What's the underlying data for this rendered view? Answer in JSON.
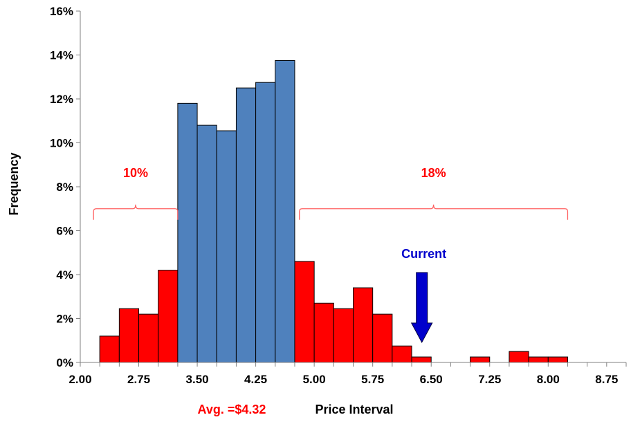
{
  "chart_data": {
    "type": "bar",
    "title": "",
    "xlabel": "Price Interval",
    "ylabel": "Frequency",
    "xlim": [
      2.0,
      9.0
    ],
    "ylim": [
      0,
      16
    ],
    "x_ticks": [
      "2.00",
      "2.75",
      "3.50",
      "4.25",
      "5.00",
      "5.75",
      "6.50",
      "7.25",
      "8.00",
      "8.75"
    ],
    "y_ticks": [
      "0%",
      "2%",
      "4%",
      "6%",
      "8%",
      "10%",
      "12%",
      "14%",
      "16%"
    ],
    "bin_width": 0.25,
    "bars": [
      {
        "start": 2.25,
        "value": 1.2,
        "group": "tail"
      },
      {
        "start": 2.5,
        "value": 2.45,
        "group": "tail"
      },
      {
        "start": 2.75,
        "value": 2.2,
        "group": "tail"
      },
      {
        "start": 3.0,
        "value": 4.2,
        "group": "tail"
      },
      {
        "start": 3.25,
        "value": 11.8,
        "group": "core"
      },
      {
        "start": 3.5,
        "value": 10.8,
        "group": "core"
      },
      {
        "start": 3.75,
        "value": 10.55,
        "group": "core"
      },
      {
        "start": 4.0,
        "value": 12.5,
        "group": "core"
      },
      {
        "start": 4.25,
        "value": 12.75,
        "group": "core"
      },
      {
        "start": 4.5,
        "value": 13.75,
        "group": "core"
      },
      {
        "start": 4.75,
        "value": 4.6,
        "group": "tail"
      },
      {
        "start": 5.0,
        "value": 2.7,
        "group": "tail"
      },
      {
        "start": 5.25,
        "value": 2.45,
        "group": "tail"
      },
      {
        "start": 5.5,
        "value": 3.4,
        "group": "tail"
      },
      {
        "start": 5.75,
        "value": 2.2,
        "group": "tail"
      },
      {
        "start": 6.0,
        "value": 0.75,
        "group": "tail"
      },
      {
        "start": 6.25,
        "value": 0.25,
        "group": "tail"
      },
      {
        "start": 7.0,
        "value": 0.25,
        "group": "tail"
      },
      {
        "start": 7.5,
        "value": 0.5,
        "group": "tail"
      },
      {
        "start": 7.75,
        "value": 0.25,
        "group": "tail"
      },
      {
        "start": 8.0,
        "value": 0.25,
        "group": "tail"
      }
    ],
    "annotations": {
      "left_tail": {
        "label": "10%",
        "from": 2.17,
        "to": 3.25,
        "level": 7.0
      },
      "right_tail": {
        "label": "18%",
        "from": 4.81,
        "to": 8.25,
        "level": 7.0
      },
      "current": {
        "label": "Current",
        "x": 6.38
      },
      "average": {
        "label": "Avg. =$4.32"
      }
    },
    "colors": {
      "core": "#4f81bd",
      "tail": "#ff0000",
      "bracket": "#ff6060",
      "annotation_red": "#ff0000",
      "current_arrow": "#0000cc",
      "axis": "#808080"
    },
    "grid": false,
    "legend": "none"
  }
}
